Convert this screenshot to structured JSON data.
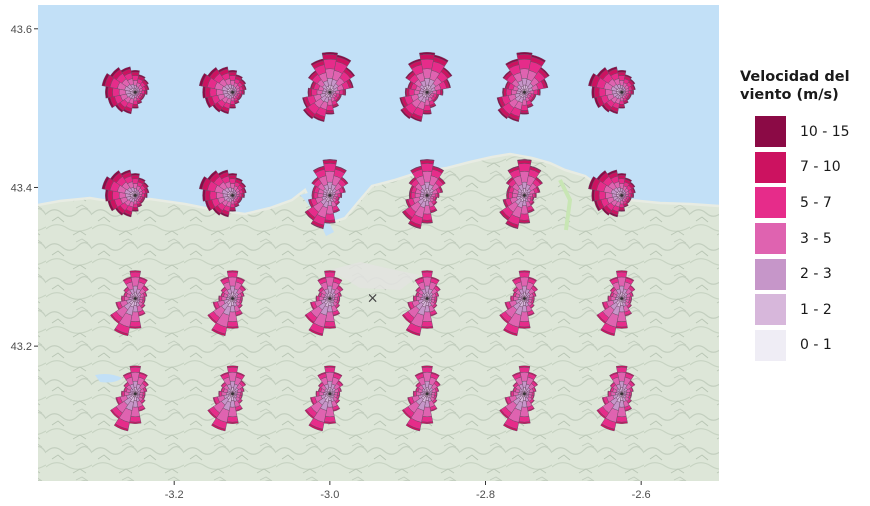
{
  "legend": {
    "title_line1": "Velocidad del",
    "title_line2": "viento (m/s)",
    "bins": [
      {
        "label": "10 - 15",
        "color": "#8b0a45"
      },
      {
        "label": "7 - 10",
        "color": "#cc1260"
      },
      {
        "label": "5 - 7",
        "color": "#e62c8a"
      },
      {
        "label": "3 - 5",
        "color": "#df63b0"
      },
      {
        "label": "2 - 3",
        "color": "#c696c9"
      },
      {
        "label": "1 - 2",
        "color": "#d7b7db"
      },
      {
        "label": "0 - 1",
        "color": "#efedf5"
      }
    ]
  },
  "axes": {
    "x_ticks": [
      {
        "value": -3.2,
        "label": "-3.2"
      },
      {
        "value": -3.0,
        "label": "-3.0"
      },
      {
        "value": -2.8,
        "label": "-2.8"
      },
      {
        "value": -2.6,
        "label": "-2.6"
      }
    ],
    "y_ticks": [
      {
        "value": 43.6,
        "label": "43.6"
      },
      {
        "value": 43.4,
        "label": "43.4"
      },
      {
        "value": 43.2,
        "label": "43.2"
      }
    ],
    "xlim": [
      -3.375,
      -2.5
    ],
    "ylim": [
      43.03,
      43.63
    ]
  },
  "map": {
    "sea_color": "#c2e0f7",
    "land_color": "#dde6d8",
    "marker_symbol": "×",
    "marker": {
      "lon": -2.945,
      "lat": 43.26
    }
  },
  "chart_data": {
    "type": "wind-rose-map",
    "directions": 16,
    "lons": [
      -3.25,
      -3.125,
      -3.0,
      -2.875,
      -2.75,
      -2.625
    ],
    "rows": [
      {
        "lat": 43.52,
        "lons": [
          -3.25,
          -3.125,
          -3.0,
          -2.875,
          -2.75,
          -2.625
        ],
        "patterns": [
          "coastW",
          "coastW",
          "seaN",
          "seaN",
          "seaN",
          "coastW"
        ]
      },
      {
        "lat": 43.39,
        "lons": [
          -3.25,
          -3.125,
          -3.0,
          -2.875,
          -2.75,
          -2.625
        ],
        "patterns": [
          "coastW",
          "coastW",
          "landNS",
          "landNS",
          "landNS",
          "coastW"
        ]
      },
      {
        "lat": 43.26,
        "lons": [
          -3.25,
          -3.125,
          -3.0,
          -2.875,
          -2.75,
          -2.625
        ],
        "patterns": [
          "inland",
          "inland",
          "inland",
          "inland",
          "inland",
          "inland"
        ]
      },
      {
        "lat": 43.14,
        "lons": [
          -3.25,
          -3.125,
          -3.0,
          -2.875,
          -2.75,
          -2.625
        ],
        "patterns": [
          "inland",
          "inland",
          "inland",
          "inland",
          "inland",
          "inland"
        ]
      }
    ]
  }
}
